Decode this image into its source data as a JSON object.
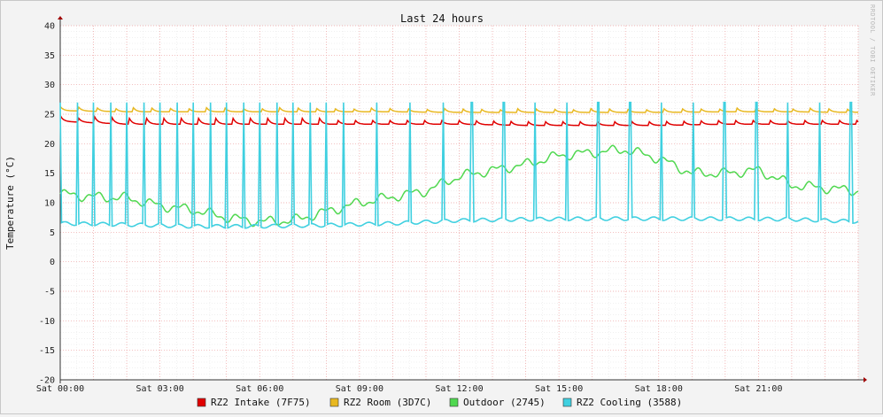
{
  "chart_data": {
    "type": "line",
    "title": "Last 24 hours",
    "ylabel": "Temperature (°C)",
    "xlabel": "",
    "ylim": [
      -20,
      40
    ],
    "yticks": [
      -20,
      -15,
      -10,
      -5,
      0,
      5,
      10,
      15,
      20,
      25,
      30,
      35,
      40
    ],
    "xlim_hours": [
      0,
      24
    ],
    "xticks": [
      {
        "hour": 0,
        "label": "Sat 00:00"
      },
      {
        "hour": 3,
        "label": "Sat 03:00"
      },
      {
        "hour": 6,
        "label": "Sat 06:00"
      },
      {
        "hour": 9,
        "label": "Sat 09:00"
      },
      {
        "hour": 12,
        "label": "Sat 12:00"
      },
      {
        "hour": 15,
        "label": "Sat 15:00"
      },
      {
        "hour": 18,
        "label": "Sat 18:00"
      },
      {
        "hour": 21,
        "label": "Sat 21:00"
      }
    ],
    "grid": true,
    "legend_position": "bottom",
    "watermark": "RRDTOOL / TOBI OETIKER",
    "series": [
      {
        "name": "RZ2 Intake (7F75)",
        "color": "#e00000",
        "x": [
          0,
          2,
          4,
          6,
          8,
          10,
          12,
          14,
          16,
          18,
          20,
          22,
          24
        ],
        "y": [
          24.0,
          23.5,
          23.5,
          23.5,
          23.5,
          23.5,
          23.5,
          23.3,
          23.3,
          23.3,
          23.5,
          23.5,
          23.5
        ]
      },
      {
        "name": "RZ2 Room (3D7C)",
        "color": "#e8b820",
        "x": [
          0,
          2,
          4,
          6,
          8,
          10,
          12,
          14,
          16,
          18,
          20,
          22,
          24
        ],
        "y": [
          25.8,
          25.6,
          25.6,
          25.6,
          25.6,
          25.6,
          25.5,
          25.5,
          25.5,
          25.5,
          25.6,
          25.6,
          25.5
        ]
      },
      {
        "name": "Outdoor (2745)",
        "color": "#50d850",
        "x": [
          0,
          1,
          2,
          3,
          4,
          5,
          6,
          7,
          8,
          9,
          10,
          11,
          12,
          13,
          14,
          15,
          16,
          17,
          18,
          19,
          20,
          21,
          22,
          23,
          24
        ],
        "y": [
          11.5,
          11.0,
          10.8,
          9.5,
          8.8,
          7.5,
          6.8,
          7.0,
          8.5,
          10.0,
          11.0,
          12.0,
          14.5,
          15.5,
          16.5,
          18.0,
          18.5,
          19.0,
          17.5,
          15.0,
          15.0,
          15.5,
          13.0,
          12.5,
          12.0
        ]
      },
      {
        "name": "RZ2 Cooling (3588)",
        "color": "#40d0e0",
        "x": [
          0,
          2,
          4,
          6,
          8,
          10,
          12,
          14,
          16,
          18,
          20,
          22,
          24
        ],
        "y": [
          6.5,
          6.3,
          6.0,
          6.0,
          6.2,
          6.5,
          7.0,
          7.2,
          7.3,
          7.3,
          7.3,
          7.2,
          6.8
        ],
        "spike_peak": 27
      }
    ]
  }
}
